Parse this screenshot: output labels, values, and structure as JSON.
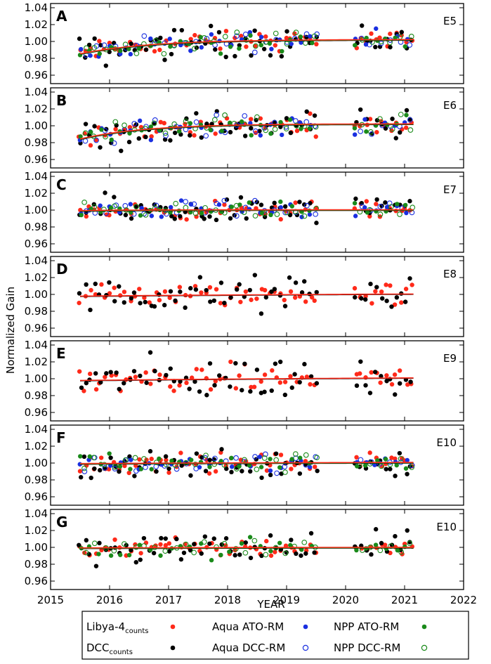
{
  "chart_data": {
    "type": "scatter",
    "ylabel": "Normalized Gain",
    "xlabel": "YEAR",
    "xlim": [
      2015,
      2022
    ],
    "ylim": [
      0.95,
      1.045
    ],
    "x_ticks": [
      "2015",
      "2016",
      "2017",
      "2018",
      "2019",
      "2020",
      "2021",
      "2022"
    ],
    "y_ticks": [
      "0.96",
      "0.98",
      "1.00",
      "1.02",
      "1.04"
    ],
    "series_styles": [
      {
        "key": "libya",
        "label_main": "Libya-4",
        "label_sub": "counts",
        "marker": "filled",
        "color": "#ff2a1a"
      },
      {
        "key": "dcc",
        "label_main": "DCC",
        "label_sub": "counts",
        "marker": "filled",
        "color": "#000000"
      },
      {
        "key": "aqua_ato",
        "label_main": "Aqua ATO-RM",
        "label_sub": "",
        "marker": "filled",
        "color": "#1a2fe0"
      },
      {
        "key": "aqua_dcc",
        "label_main": "Aqua DCC-RM",
        "label_sub": "",
        "marker": "open",
        "color": "#1a2fe0"
      },
      {
        "key": "npp_ato",
        "label_main": "NPP ATO-RM",
        "label_sub": "",
        "marker": "filled",
        "color": "#1a8a1a"
      },
      {
        "key": "npp_dcc",
        "label_main": "NPP DCC-RM",
        "label_sub": "",
        "marker": "open",
        "color": "#1a8a1a"
      }
    ],
    "panels": [
      {
        "letter": "A",
        "band": "E5",
        "series": [
          "libya",
          "dcc",
          "aqua_ato",
          "aqua_dcc",
          "npp_ato",
          "npp_dcc"
        ],
        "amp": 0.01,
        "trend": {
          "start": 0.985,
          "plateau": 1.002,
          "tau": 1.2
        }
      },
      {
        "letter": "B",
        "band": "E6",
        "series": [
          "libya",
          "dcc",
          "aqua_ato",
          "aqua_dcc",
          "npp_ato",
          "npp_dcc"
        ],
        "amp": 0.01,
        "trend": {
          "start": 0.984,
          "plateau": 1.002,
          "tau": 1.1
        }
      },
      {
        "letter": "C",
        "band": "E7",
        "series": [
          "libya",
          "dcc",
          "aqua_ato",
          "aqua_dcc",
          "npp_ato",
          "npp_dcc"
        ],
        "amp": 0.009,
        "trend": {
          "start": 0.999,
          "plateau": 1.0,
          "tau": 1.0
        }
      },
      {
        "letter": "D",
        "band": "E8",
        "series": [
          "libya",
          "dcc"
        ],
        "amp": 0.012,
        "trend": {
          "start": 0.998,
          "plateau": 1.003,
          "tau": 8.0
        }
      },
      {
        "letter": "E",
        "band": "E9",
        "series": [
          "libya",
          "dcc"
        ],
        "amp": 0.014,
        "trend": {
          "start": 0.998,
          "plateau": 1.004,
          "tau": 8.0
        }
      },
      {
        "letter": "F",
        "band": "E10",
        "series": [
          "libya",
          "dcc",
          "aqua_ato",
          "aqua_dcc",
          "npp_ato",
          "npp_dcc"
        ],
        "amp": 0.01,
        "trend": {
          "start": 0.999,
          "plateau": 1.001,
          "tau": 5.0
        }
      },
      {
        "letter": "G",
        "band": "E10",
        "series": [
          "libya",
          "dcc",
          "npp_ato",
          "npp_dcc"
        ],
        "amp": 0.01,
        "trend": {
          "start": 0.999,
          "plateau": 1.0,
          "tau": 5.0
        }
      }
    ],
    "time_range": {
      "start": 2015.5,
      "gap_start": 2019.55,
      "gap_end": 2020.15,
      "end": 2021.15,
      "step": 0.085
    },
    "legend_position": "bottom"
  }
}
